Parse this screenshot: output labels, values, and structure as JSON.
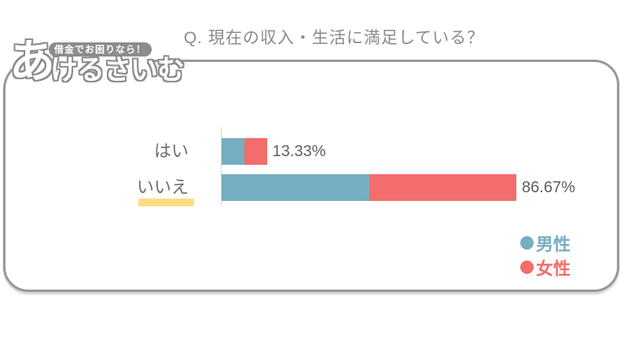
{
  "title": "Q. 現在の収入・生活に満足している？",
  "logo": {
    "badge": "借金でお困りなら！",
    "name_big": "あ",
    "name_rest": "けるさいむ"
  },
  "chart_data": {
    "type": "bar",
    "orientation": "horizontal",
    "stacked": true,
    "title": "Q. 現在の収入・生活に満足している？",
    "categories": [
      "はい",
      "いいえ"
    ],
    "series": [
      {
        "name": "男性",
        "color": "#75AEC1",
        "values": [
          6.67,
          43.33
        ]
      },
      {
        "name": "女性",
        "color": "#F26D6B",
        "values": [
          6.66,
          43.34
        ]
      }
    ],
    "totals": [
      13.33,
      86.67
    ],
    "total_labels": [
      "13.33%",
      "86.67%"
    ],
    "xlim": [
      0,
      100
    ],
    "grid": false,
    "legend_position": "bottom-right",
    "highlighted_category": "いいえ",
    "highlight_color": "#FBDD86"
  },
  "colors": {
    "male": "#75AEC1",
    "female": "#F26D6B",
    "highlight": "#FBDD86",
    "card_border": "#989898",
    "title_text": "#8A8A8A",
    "category_text": "#6E6E6E",
    "value_text": "#5E5E5E",
    "logo_gray": "#8C8C8C",
    "axis_line": "#D6D6D6"
  }
}
